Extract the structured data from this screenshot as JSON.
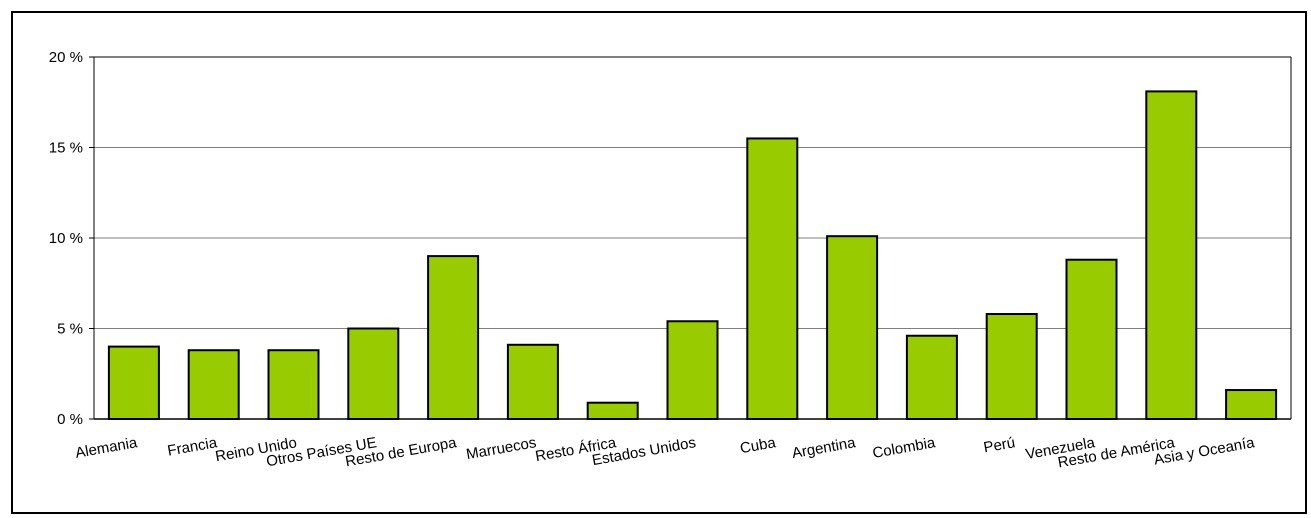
{
  "chart_data": {
    "type": "bar",
    "categories": [
      "Alemania",
      "Francia",
      "Reino Unido",
      "Otros Países UE",
      "Resto de Europa",
      "Marruecos",
      "Resto África",
      "Estados Unidos",
      "Cuba",
      "Argentina",
      "Colombia",
      "Perú",
      "Venezuela",
      "Resto de América",
      "Asia y Oceanía"
    ],
    "values": [
      4.0,
      3.8,
      3.8,
      5.0,
      9.0,
      4.1,
      0.9,
      5.4,
      15.5,
      10.1,
      4.6,
      5.8,
      8.8,
      18.1,
      1.6
    ],
    "ylim": [
      0,
      20
    ],
    "yticks": [
      {
        "value": 0,
        "label": "0 %"
      },
      {
        "value": 5,
        "label": "5 %"
      },
      {
        "value": 10,
        "label": "10 %"
      },
      {
        "value": 15,
        "label": "15 %"
      },
      {
        "value": 20,
        "label": "20 %"
      }
    ],
    "grid": true,
    "bar_color": "#99cc00",
    "bar_border_color": "#000000",
    "grid_color": "#808080",
    "title": "",
    "xlabel": "",
    "ylabel": ""
  }
}
